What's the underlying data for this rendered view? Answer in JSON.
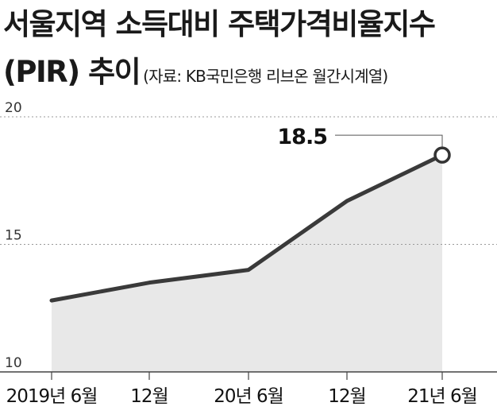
{
  "title_line1": "서울지역 소득대비 주택가격비율지수",
  "title_line2": "(PIR) 추이",
  "source": "(자료: KB국민은행 리브온 월간시계열)",
  "chart_data": {
    "type": "area",
    "title": "서울지역 소득대비 주택가격비율지수 (PIR) 추이",
    "source": "(자료: KB국민은행 리브온 월간시계열)",
    "ylim": [
      10,
      20
    ],
    "yticks": [
      "20",
      "15",
      "10"
    ],
    "categories": [
      "2019년 6월",
      "12월",
      "20년 6월",
      "12월",
      "21년 6월"
    ],
    "values": [
      12.8,
      13.5,
      14.0,
      16.7,
      18.5
    ],
    "data_labels": [
      {
        "index": 4,
        "text": "18.5"
      }
    ],
    "grid": "dashed horizontal at 15 and 20",
    "fill_color": "#e8e8e8",
    "line_color": "#3a3a3a"
  }
}
